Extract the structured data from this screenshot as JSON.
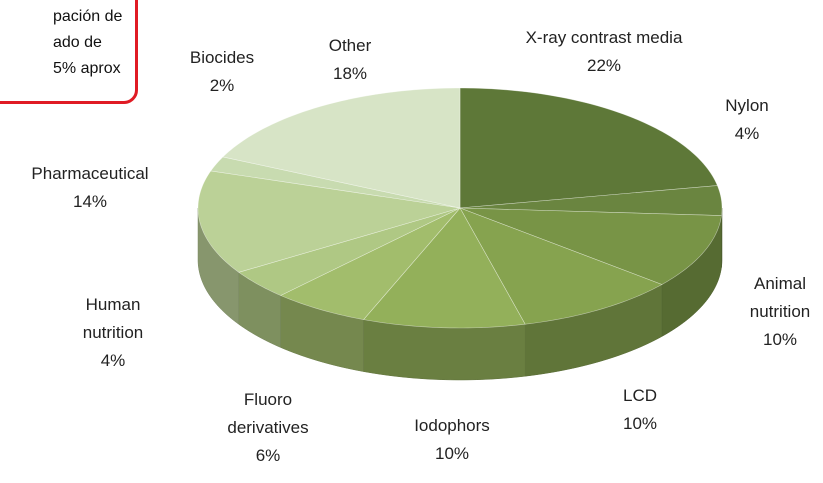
{
  "annotation": {
    "lines": [
      "pación de",
      "ado de",
      "5% aprox"
    ]
  },
  "chart_data": {
    "type": "pie",
    "categories": [
      "X-ray contrast media",
      "Nylon",
      "Animal nutrition",
      "LCD",
      "Iodophors",
      "Fluoro derivatives",
      "Human nutrition",
      "Pharmaceutical",
      "Biocides",
      "Other"
    ],
    "values": [
      22,
      4,
      10,
      10,
      10,
      6,
      4,
      14,
      2,
      18
    ],
    "value_labels": [
      "22%",
      "4%",
      "10%",
      "10%",
      "10%",
      "6%",
      "4%",
      "14%",
      "2%",
      "18%"
    ],
    "colors": [
      "#5e7838",
      "#6a8540",
      "#789446",
      "#86a34f",
      "#93b05a",
      "#a2bd6c",
      "#afc884",
      "#bbd197",
      "#c8dbb0",
      "#d7e4c6"
    ]
  }
}
